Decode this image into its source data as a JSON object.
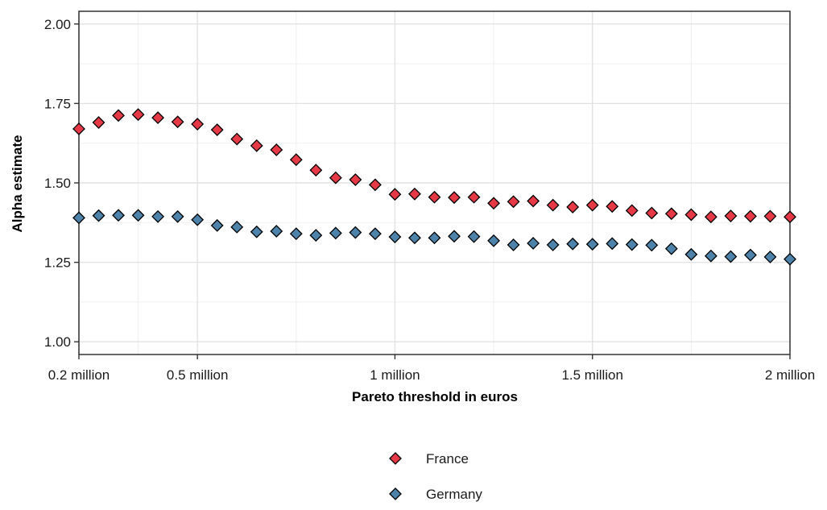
{
  "chart_data": {
    "type": "scatter",
    "title": "",
    "xlabel": "Pareto threshold in euros",
    "ylabel": "Alpha estimate",
    "xlim": [
      0.2,
      2.0
    ],
    "ylim": [
      0.96,
      2.04
    ],
    "x_ticks": [
      {
        "value": 0.2,
        "label": "0.2 million"
      },
      {
        "value": 0.5,
        "label": "0.5 million"
      },
      {
        "value": 1.0,
        "label": "1 million"
      },
      {
        "value": 1.5,
        "label": "1.5 million"
      },
      {
        "value": 2.0,
        "label": "2 million"
      }
    ],
    "y_ticks": [
      {
        "value": 1.0,
        "label": "1.00"
      },
      {
        "value": 1.25,
        "label": "1.25"
      },
      {
        "value": 1.5,
        "label": "1.50"
      },
      {
        "value": 1.75,
        "label": "1.75"
      },
      {
        "value": 2.0,
        "label": "2.00"
      }
    ],
    "x_minor_gridlines": [
      0.35,
      0.75,
      1.25,
      1.75
    ],
    "y_minor_gridlines": [
      1.125,
      1.375,
      1.625,
      1.875
    ],
    "grid": true,
    "legend_position": "bottom",
    "x": [
      0.2,
      0.25,
      0.3,
      0.35,
      0.4,
      0.45,
      0.5,
      0.55,
      0.6,
      0.65,
      0.7,
      0.75,
      0.8,
      0.85,
      0.9,
      0.95,
      1.0,
      1.05,
      1.1,
      1.15,
      1.2,
      1.25,
      1.3,
      1.35,
      1.4,
      1.45,
      1.5,
      1.55,
      1.6,
      1.65,
      1.7,
      1.75,
      1.8,
      1.85,
      1.9,
      1.95,
      2.0
    ],
    "series": [
      {
        "name": "France",
        "color": "#e63946",
        "values": [
          1.67,
          1.69,
          1.712,
          1.715,
          1.705,
          1.692,
          1.685,
          1.667,
          1.638,
          1.617,
          1.604,
          1.573,
          1.54,
          1.516,
          1.51,
          1.494,
          1.464,
          1.465,
          1.455,
          1.454,
          1.455,
          1.436,
          1.441,
          1.443,
          1.43,
          1.424,
          1.43,
          1.426,
          1.413,
          1.405,
          1.403,
          1.4,
          1.393,
          1.396,
          1.395,
          1.395,
          1.393
        ]
      },
      {
        "name": "Germany",
        "color": "#4d83ab",
        "values": [
          1.39,
          1.397,
          1.398,
          1.398,
          1.394,
          1.394,
          1.384,
          1.366,
          1.361,
          1.346,
          1.348,
          1.34,
          1.335,
          1.342,
          1.344,
          1.34,
          1.33,
          1.327,
          1.327,
          1.332,
          1.331,
          1.318,
          1.305,
          1.31,
          1.305,
          1.308,
          1.307,
          1.309,
          1.306,
          1.304,
          1.293,
          1.275,
          1.27,
          1.268,
          1.273,
          1.267,
          1.26
        ]
      }
    ]
  }
}
